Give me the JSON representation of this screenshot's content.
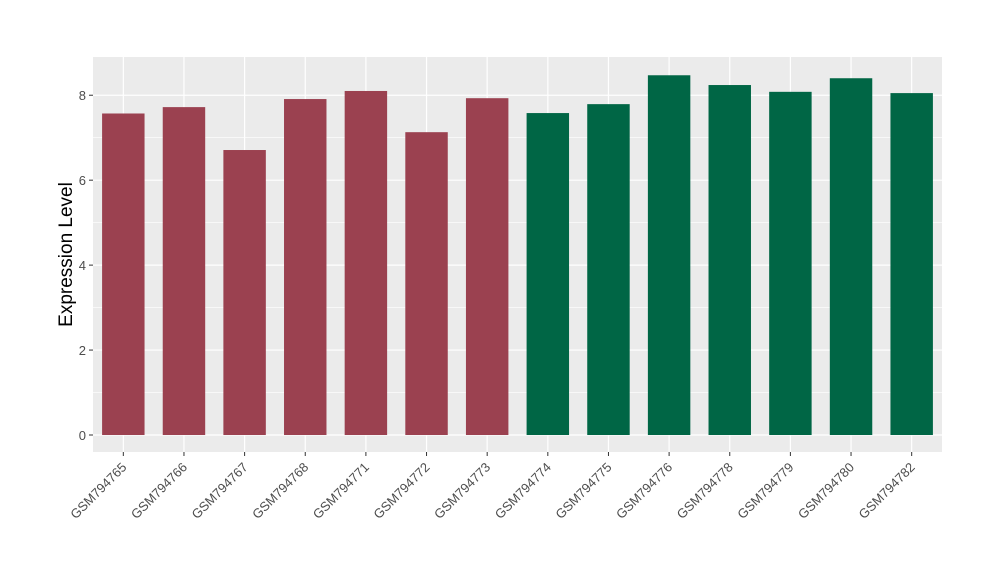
{
  "chart_data": {
    "type": "bar",
    "title": "",
    "xlabel": "",
    "ylabel": "Expression Level",
    "categories": [
      "GSM794765",
      "GSM794766",
      "GSM794767",
      "GSM794768",
      "GSM794771",
      "GSM794772",
      "GSM794773",
      "GSM794774",
      "GSM794775",
      "GSM794776",
      "GSM794778",
      "GSM794779",
      "GSM794780",
      "GSM794782"
    ],
    "values": [
      7.57,
      7.72,
      6.71,
      7.91,
      8.1,
      7.13,
      7.93,
      7.58,
      7.79,
      8.47,
      8.24,
      8.08,
      8.4,
      8.05
    ],
    "groups": [
      0,
      0,
      0,
      0,
      0,
      0,
      0,
      1,
      1,
      1,
      1,
      1,
      1,
      1
    ],
    "group_colors": [
      "#9B4150",
      "#006645"
    ],
    "ylim": [
      -0.4,
      8.9
    ],
    "yticks": [
      0,
      2,
      4,
      6,
      8
    ],
    "grid": true,
    "panel_background": "#EBEBEB",
    "grid_color": "#FFFFFF",
    "legend": "none"
  }
}
